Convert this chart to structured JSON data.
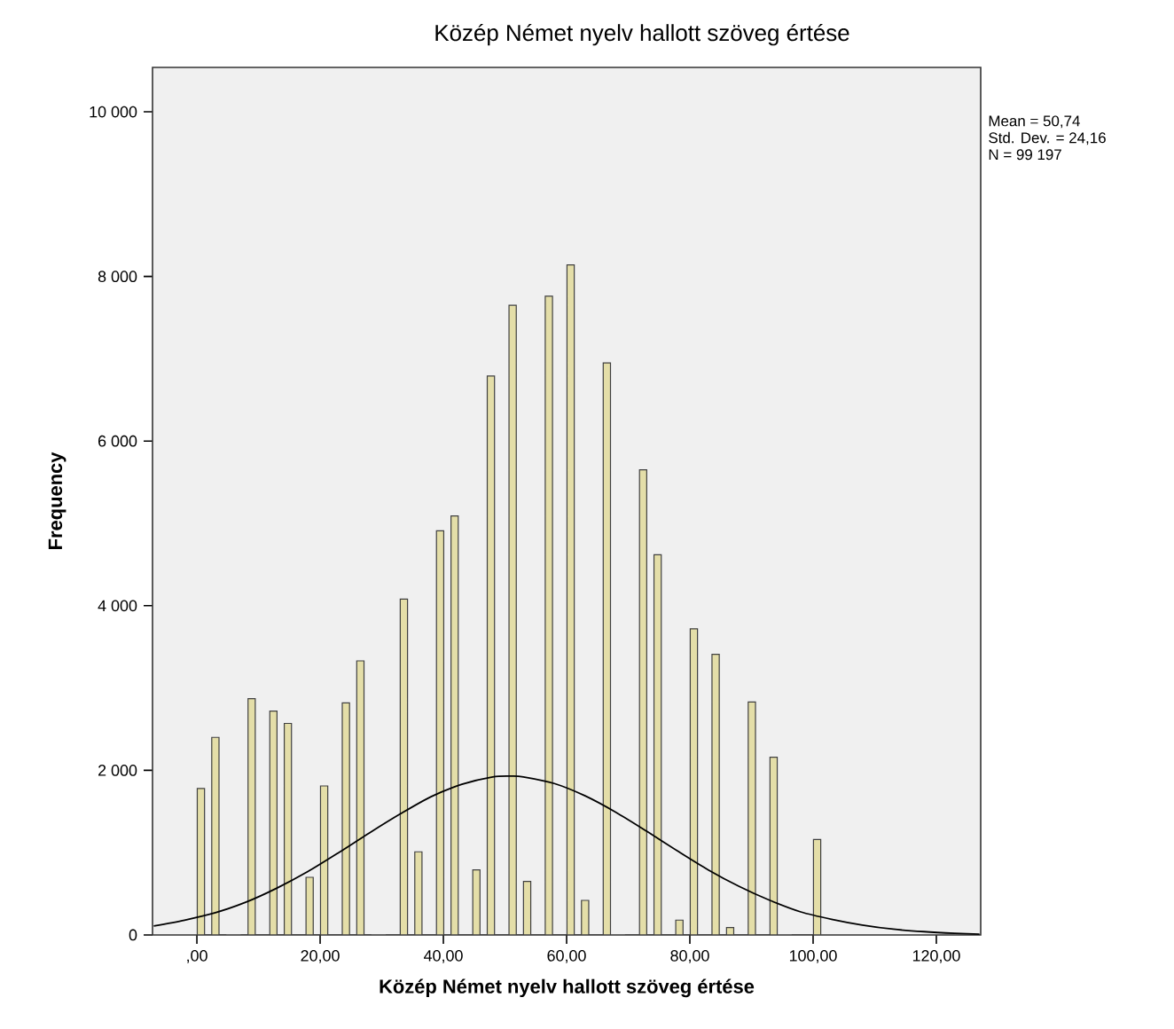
{
  "chart_data": {
    "type": "histogram",
    "title": "Közép Német nyelv hallott szöveg értése",
    "xlabel": "Közép Német nyelv hallott szöveg értése",
    "ylabel": "Frequency",
    "annotations": [
      "Mean = 50,74",
      "Std. Dev. = 24,16",
      "N = 99 197"
    ],
    "bins": [
      0.06,
      1.24,
      2.41,
      3.59,
      4.77,
      5.94,
      7.12,
      8.3,
      9.47,
      10.65,
      11.83,
      13.0,
      14.18,
      15.35,
      16.53,
      17.71,
      18.88,
      20.06,
      21.24,
      22.41,
      23.59,
      24.77,
      25.94,
      27.12,
      28.3,
      29.47,
      30.65,
      31.83,
      33.0,
      34.18,
      35.36,
      36.53,
      37.71,
      38.88,
      40.06,
      41.24,
      42.41,
      43.59,
      44.77,
      45.94,
      47.12,
      48.3,
      49.47,
      50.65,
      51.83,
      53.0,
      54.18,
      55.36,
      56.53,
      57.71,
      58.88,
      60.06,
      61.24,
      62.41,
      63.59,
      64.77,
      65.94,
      67.12,
      68.3,
      69.47,
      70.65,
      71.83,
      73.0,
      74.18,
      75.36,
      76.53,
      77.71,
      78.89,
      80.06,
      81.24,
      82.42,
      83.59,
      84.77,
      85.95,
      87.12,
      88.3,
      89.47,
      90.65,
      91.83,
      93.0,
      94.18,
      95.36,
      96.53,
      97.71,
      98.89,
      100.06,
      101.24
    ],
    "values": [
      1780,
      0,
      2400,
      0,
      0,
      null,
      0,
      2870,
      0,
      0,
      2720,
      0,
      2570,
      0,
      0,
      700,
      0,
      1810,
      0,
      0,
      2820,
      0,
      3330,
      0,
      0,
      null,
      0,
      0,
      4080,
      0,
      1010,
      0,
      0,
      4910,
      0,
      5090,
      0,
      0,
      790,
      0,
      6790,
      0,
      0,
      7650,
      0,
      650,
      0,
      0,
      7760,
      0,
      0,
      8140,
      0,
      420,
      0,
      0,
      6950,
      0,
      null,
      0,
      0,
      5650,
      0,
      4620,
      0,
      0,
      180,
      0,
      3720,
      0,
      0,
      3410,
      0,
      90,
      0,
      0,
      2830,
      0,
      0,
      2160,
      0,
      null,
      0,
      0,
      0,
      1160
    ],
    "color": "#e4dea8",
    "series": [
      {
        "type": "line",
        "color": "#000000",
        "x": [
          -7,
          -2,
          3,
          8,
          13,
          18,
          23,
          28,
          33,
          38,
          43,
          48,
          51,
          53,
          58,
          63,
          68,
          73,
          78,
          83,
          88,
          93,
          98,
          103,
          108,
          113,
          118,
          123,
          127
        ],
        "values": [
          110,
          180,
          270,
          400,
          570,
          770,
          1000,
          1240,
          1470,
          1680,
          1830,
          1920,
          1930,
          1920,
          1840,
          1690,
          1490,
          1260,
          1020,
          790,
          590,
          420,
          280,
          190,
          120,
          70,
          40,
          20,
          10
        ]
      }
    ],
    "xlim": [
      -7.2,
      127.2
    ],
    "ylim": [
      0,
      10540
    ],
    "xticks": [
      {
        "value": 0,
        "label": ",00"
      },
      {
        "value": 20,
        "label": "20,00"
      },
      {
        "value": 40,
        "label": "40,00"
      },
      {
        "value": 60,
        "label": "60,00"
      },
      {
        "value": 80,
        "label": "80,00"
      },
      {
        "value": 100,
        "label": "100,00"
      },
      {
        "value": 120,
        "label": "120,00"
      }
    ],
    "yticks": [
      {
        "value": 0,
        "label": "0"
      },
      {
        "value": 2000,
        "label": "2 000"
      },
      {
        "value": 4000,
        "label": "4 000"
      },
      {
        "value": 6000,
        "label": "6 000"
      },
      {
        "value": 8000,
        "label": "8 000"
      },
      {
        "value": 10000,
        "label": "10 000"
      }
    ]
  }
}
